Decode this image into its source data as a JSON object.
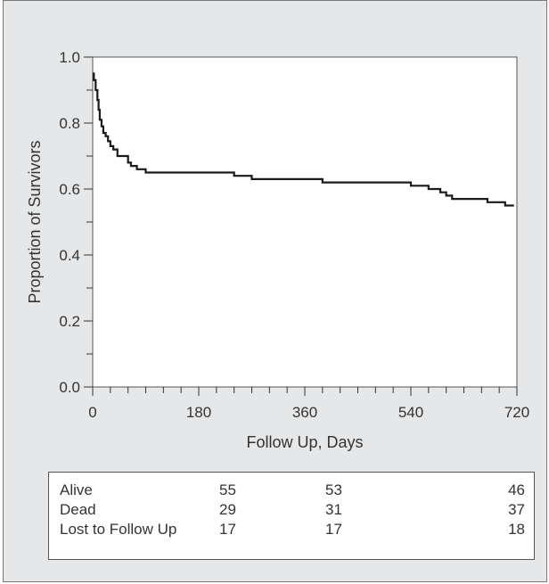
{
  "chart_data": {
    "type": "line",
    "line_style": "step",
    "xlabel": "Follow Up, Days",
    "ylabel": "Proportion of Survivors",
    "xlim": [
      0,
      720
    ],
    "ylim": [
      0,
      1.0
    ],
    "x_ticks": [
      0,
      180,
      360,
      540,
      720
    ],
    "y_ticks": [
      "0.0",
      "0.2",
      "0.4",
      "0.6",
      "0.8",
      "1.0"
    ],
    "minor_x_tick_step": 30,
    "minor_y_tick_step": 0.1,
    "grid": false,
    "line_color": "#1a1a1a",
    "series": [
      {
        "x": [
          0,
          2,
          5,
          8,
          10,
          12,
          15,
          18,
          22,
          26,
          30,
          35,
          42,
          50,
          60,
          65,
          75,
          90,
          200,
          220,
          240,
          270,
          300,
          330,
          360,
          390,
          420,
          450,
          480,
          510,
          540,
          560,
          570,
          580,
          590,
          600,
          610,
          620,
          640,
          660,
          670,
          680,
          700,
          715
        ],
        "y": [
          0.95,
          0.93,
          0.9,
          0.87,
          0.84,
          0.81,
          0.79,
          0.77,
          0.76,
          0.745,
          0.73,
          0.72,
          0.7,
          0.7,
          0.68,
          0.67,
          0.66,
          0.65,
          0.65,
          0.65,
          0.64,
          0.63,
          0.63,
          0.63,
          0.63,
          0.62,
          0.62,
          0.62,
          0.62,
          0.62,
          0.61,
          0.61,
          0.6,
          0.6,
          0.59,
          0.58,
          0.57,
          0.57,
          0.57,
          0.57,
          0.56,
          0.56,
          0.55,
          0.55
        ]
      }
    ]
  },
  "table": {
    "rows": [
      {
        "label": "Alive",
        "values": [
          "55",
          "53",
          "46"
        ]
      },
      {
        "label": "Dead",
        "values": [
          "29",
          "31",
          "37"
        ]
      },
      {
        "label": "Lost to Follow Up",
        "values": [
          "17",
          "17",
          "18"
        ]
      }
    ]
  },
  "colors": {
    "panel_background": "#e6e7e8",
    "plot_background": "#ffffff",
    "text": "#333333"
  }
}
